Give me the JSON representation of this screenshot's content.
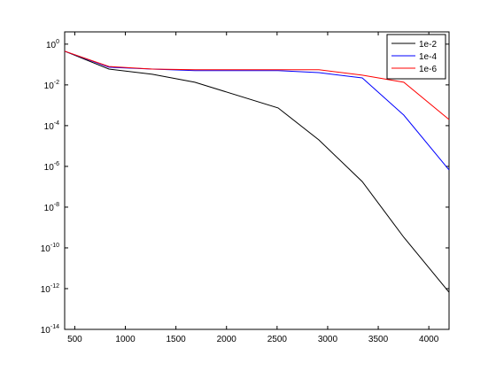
{
  "chart_data": {
    "type": "line",
    "x": [
      400,
      838,
      1267,
      1687,
      2510,
      2913,
      3342,
      3753,
      4200
    ],
    "series": [
      {
        "name": "1e-2",
        "color": "#000000",
        "values": [
          0.45,
          0.06,
          0.033,
          0.0135,
          0.00074,
          2e-05,
          1.8e-07,
          3.3e-10,
          6.6e-13
        ]
      },
      {
        "name": "1e-4",
        "color": "#0000ff",
        "values": [
          0.45,
          0.074,
          0.06,
          0.05,
          0.05,
          0.04,
          0.022,
          0.00033,
          6.7e-07
        ]
      },
      {
        "name": "1e-6",
        "color": "#ff0000",
        "values": [
          0.45,
          0.08,
          0.06,
          0.055,
          0.055,
          0.055,
          0.03,
          0.0135,
          0.0002
        ]
      }
    ],
    "xlim": [
      400,
      4200
    ],
    "xticks": [
      500,
      1000,
      1500,
      2000,
      2500,
      3000,
      3500,
      4000
    ],
    "ylim": [
      1e-14,
      4
    ],
    "yscale": "log",
    "yticks": [
      {
        "value": 1,
        "label": "10^0"
      },
      {
        "value": 0.01,
        "label": "10^-2"
      },
      {
        "value": 0.0001,
        "label": "10^-4"
      },
      {
        "value": 1e-06,
        "label": "10^-6"
      },
      {
        "value": 1e-08,
        "label": "10^-8"
      },
      {
        "value": 1e-10,
        "label": "10^-10"
      },
      {
        "value": 1e-12,
        "label": "10^-12"
      },
      {
        "value": 1e-14,
        "label": "10^-14"
      }
    ],
    "legend": "upper right"
  }
}
